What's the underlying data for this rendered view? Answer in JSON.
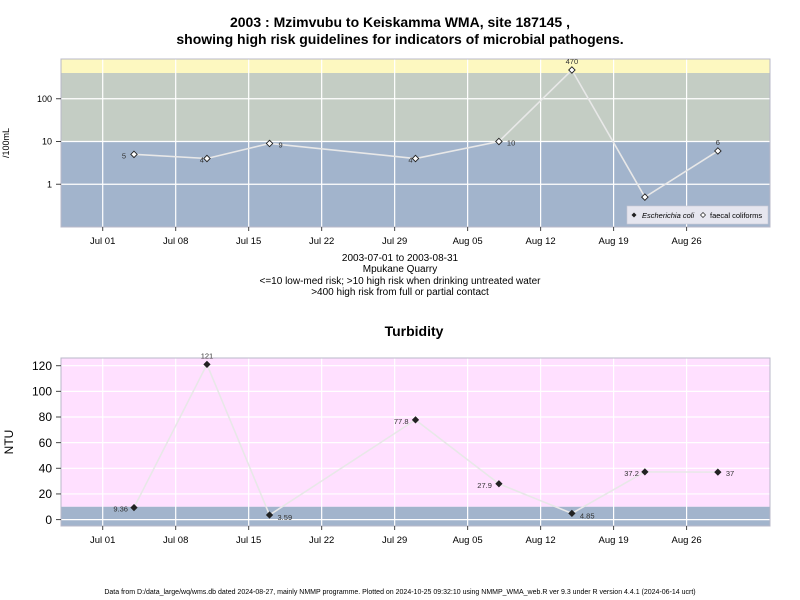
{
  "header": {
    "title_line1": "2003 : Mzimvubu to Keiskamma WMA, site 187145 ,",
    "title_line2": "showing high risk guidelines for indicators of microbial pathogens."
  },
  "caption": {
    "period": "2003-07-01 to 2003-08-31",
    "site_name": "Mpukane Quarry",
    "risk_line1": "<=10 low-med risk; >10 high risk when drinking untreated water",
    "risk_line2": ">400 high risk from full or partial contact"
  },
  "footer": "Data from D:/data_large/wq/wms.db dated 2024-08-27, mainly NMMP programme. Plotted on 2024-10-25 09:32:10 using NMMP_WMA_web.R ver 9.3 under R version 4.4.1 (2024-06-14 ucrt)",
  "colors": {
    "band_low": "#a2b4cc",
    "band_mid": "#c4cdc4",
    "band_high": "#fdf8c0",
    "turbidity_bg": "#ffe0ff",
    "turbidity_low_band": "#a2b4cc",
    "line": "#e8e8e8",
    "grid": "#ffffff",
    "frame": "#b8b8c8"
  },
  "chart_data": [
    {
      "type": "line",
      "title": "",
      "ylabel": "/100mL",
      "yscale": "log",
      "ylim": [
        0.1,
        470
      ],
      "yticks": [
        1,
        10,
        100
      ],
      "ytick_labels": [
        "1",
        "10",
        "100"
      ],
      "xlim": [
        "2003-06-27",
        "2003-09-03"
      ],
      "xticks": [
        "2003-07-01",
        "2003-07-08",
        "2003-07-15",
        "2003-07-22",
        "2003-07-29",
        "2003-08-05",
        "2003-08-12",
        "2003-08-19",
        "2003-08-26"
      ],
      "xtick_labels": [
        "Jul 01",
        "Jul 08",
        "Jul 15",
        "Jul 22",
        "Jul 29",
        "Aug 05",
        "Aug 12",
        "Aug 19",
        "Aug 26"
      ],
      "thresholds": [
        10,
        400
      ],
      "legend": {
        "position": "bottom-right",
        "entries": [
          "Escherichia coli",
          "faecal coliforms"
        ]
      },
      "grid": true,
      "series": [
        {
          "name": "faecal coliforms",
          "marker": "open-diamond",
          "x": [
            "2003-07-04",
            "2003-07-11",
            "2003-07-17",
            "2003-07-31",
            "2003-08-08",
            "2003-08-15",
            "2003-08-22",
            "2003-08-29"
          ],
          "y": [
            5,
            4,
            9,
            4,
            10,
            470,
            0.5,
            6
          ],
          "labels": [
            "5",
            "4",
            "9",
            "4",
            "10",
            "470",
            "0",
            "6"
          ]
        }
      ]
    },
    {
      "type": "line",
      "title": "Turbidity",
      "ylabel": "NTU",
      "ylim": [
        -5,
        126
      ],
      "yticks": [
        0,
        20,
        40,
        60,
        80,
        100,
        120
      ],
      "ytick_labels": [
        "0",
        "20",
        "40",
        "60",
        "80",
        "100",
        "120"
      ],
      "xlim": [
        "2003-06-27",
        "2003-09-03"
      ],
      "xticks": [
        "2003-07-01",
        "2003-07-08",
        "2003-07-15",
        "2003-07-22",
        "2003-07-29",
        "2003-08-05",
        "2003-08-12",
        "2003-08-19",
        "2003-08-26"
      ],
      "xtick_labels": [
        "Jul 01",
        "Jul 08",
        "Jul 15",
        "Jul 22",
        "Jul 29",
        "Aug 05",
        "Aug 12",
        "Aug 19",
        "Aug 26"
      ],
      "thresholds": [
        10
      ],
      "grid": true,
      "series": [
        {
          "marker": "filled-diamond",
          "x": [
            "2003-07-04",
            "2003-07-11",
            "2003-07-17",
            "2003-07-31",
            "2003-08-08",
            "2003-08-15",
            "2003-08-22",
            "2003-08-29"
          ],
          "y": [
            9.36,
            121,
            3.59,
            77.8,
            27.9,
            4.85,
            37.2,
            37
          ],
          "labels": [
            "9.36",
            "121",
            "3.59",
            "77.8",
            "27.9",
            "4.85",
            "37.2",
            "37"
          ]
        }
      ]
    }
  ]
}
